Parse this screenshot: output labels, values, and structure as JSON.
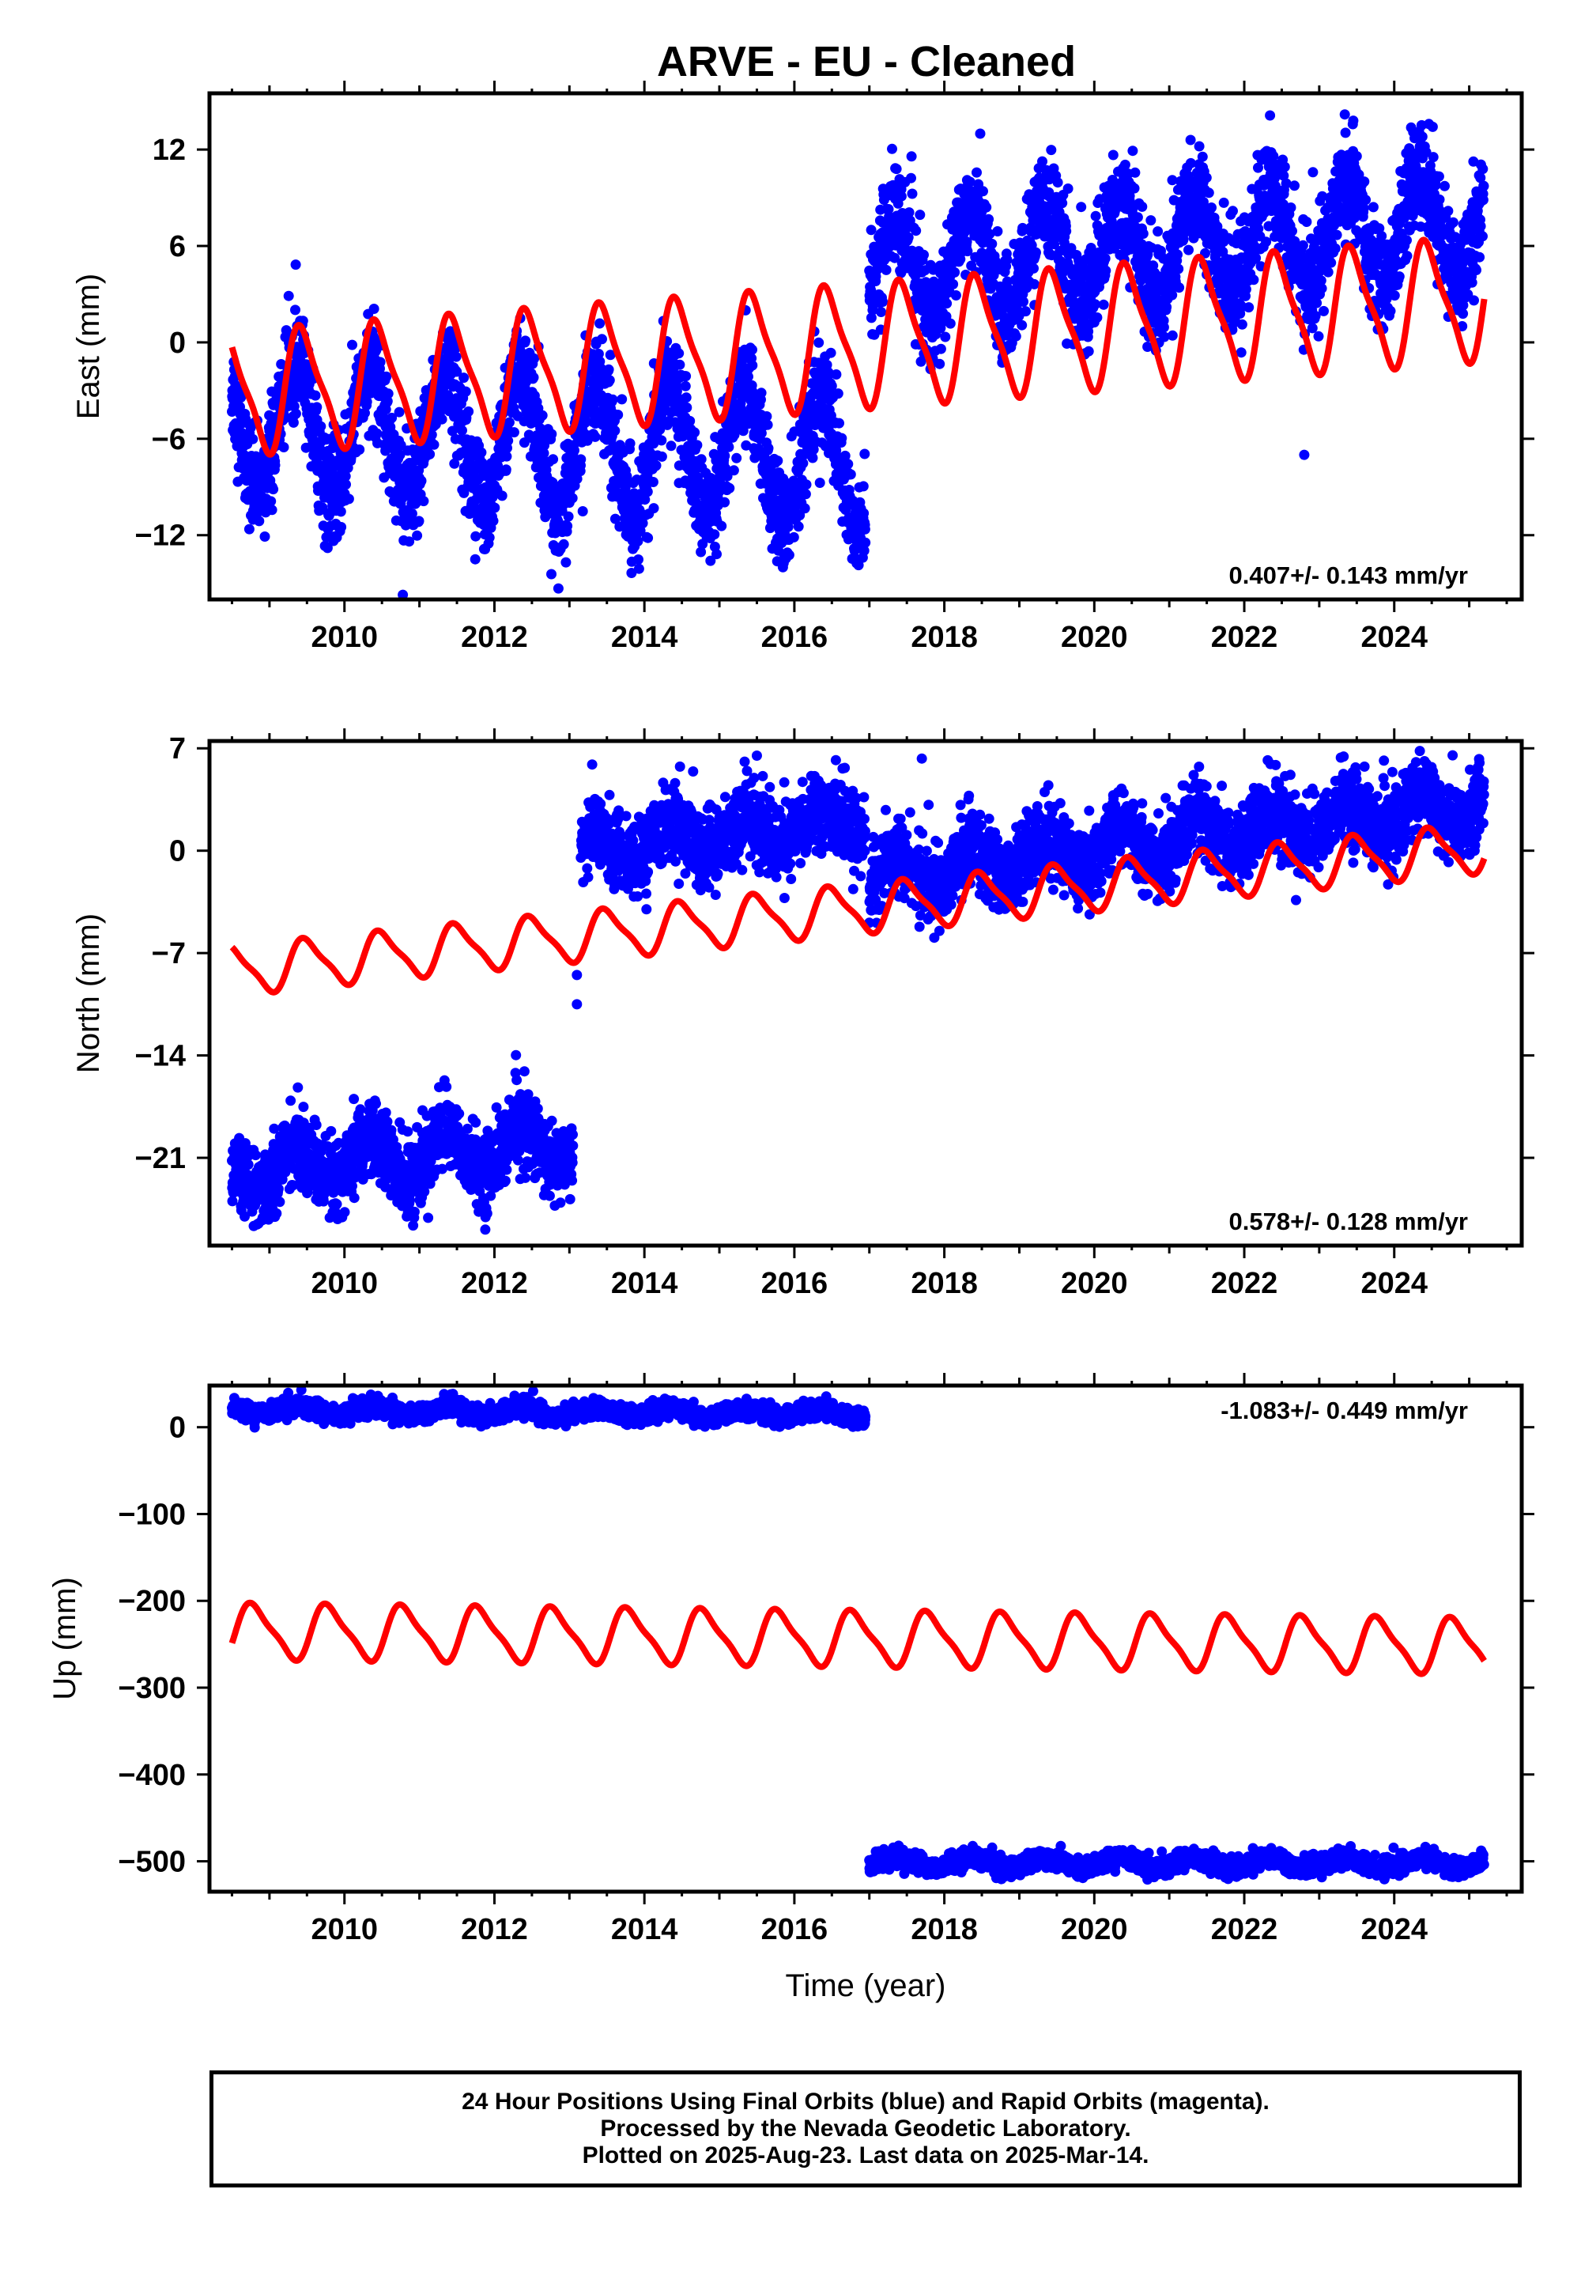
{
  "title": "ARVE  - EU - Cleaned",
  "colors": {
    "observed": "#0000ff",
    "model": "#ff0000",
    "frame": "#000000"
  },
  "footer": {
    "line1": "24 Hour Positions Using Final Orbits (blue) and Rapid Orbits (magenta).",
    "line2": "Processed by the Nevada Geodetic Laboratory.",
    "line3": "Plotted on 2025-Aug-23. Last data on 2025-Mar-14."
  },
  "chart_data": [
    {
      "type": "scatter",
      "panel": "east",
      "ylabel": "East (mm)",
      "xlabel": "",
      "xlim": [
        2008.2,
        2025.7
      ],
      "ylim": [
        -16,
        15.5
      ],
      "xticks": [
        2010,
        2012,
        2014,
        2016,
        2018,
        2020,
        2022,
        2024
      ],
      "yticks": [
        12,
        6,
        0,
        -6,
        -12
      ],
      "ytick_labels": [
        "12",
        "6",
        "0",
        "-6",
        "-12"
      ],
      "rate_label": "0.407+/- 0.143 mm/yr",
      "rate_label_position": "bottom-right",
      "series": [
        {
          "kind": "observed_points",
          "segments": [
            {
              "x_range": [
                2008.5,
                2016.95
              ],
              "trend_start": -5.0,
              "trend_end": -7.5,
              "amplitude": 4.0,
              "noise": 1.6
            },
            {
              "x_range": [
                2017.0,
                2025.2
              ],
              "trend_start": 4.5,
              "trend_end": 7.5,
              "amplitude": 3.2,
              "noise": 1.6
            }
          ],
          "outliers": [
            {
              "x": 2022.8,
              "y": -7.0
            }
          ]
        },
        {
          "kind": "model_line",
          "x_range": [
            2008.5,
            2025.2
          ],
          "offset_start": -3.2,
          "offset_end": 2.7,
          "amplitude": 3.6,
          "phase_peak_frac": 0.45
        }
      ]
    },
    {
      "type": "scatter",
      "panel": "north",
      "ylabel": "North (mm)",
      "xlabel": "",
      "xlim": [
        2008.2,
        2025.7
      ],
      "ylim": [
        -27,
        7.5
      ],
      "xticks": [
        2010,
        2012,
        2014,
        2016,
        2018,
        2020,
        2022,
        2024
      ],
      "yticks": [
        7,
        0,
        -7,
        -14,
        -21
      ],
      "ytick_labels": [
        "7",
        "0",
        "-7",
        "-14",
        "-21"
      ],
      "rate_label": "0.578+/- 0.128 mm/yr",
      "rate_label_position": "bottom-right",
      "series": [
        {
          "kind": "observed_points",
          "segments": [
            {
              "x_range": [
                2008.5,
                2013.05
              ],
              "trend_start": -22.0,
              "trend_end": -20.0,
              "amplitude": 1.5,
              "noise": 1.3
            },
            {
              "x_range": [
                2013.15,
                2016.95
              ],
              "trend_start": 0.0,
              "trend_end": 2.2,
              "amplitude": 1.2,
              "noise": 1.3
            },
            {
              "x_range": [
                2017.0,
                2025.2
              ],
              "trend_start": -1.8,
              "trend_end": 3.2,
              "amplitude": 1.2,
              "noise": 1.3
            }
          ],
          "outliers": [
            {
              "x": 2013.1,
              "y": -8.5
            },
            {
              "x": 2013.1,
              "y": -10.5
            },
            {
              "x": 2015.5,
              "y": 6.5
            },
            {
              "x": 2017.7,
              "y": 6.3
            }
          ]
        },
        {
          "kind": "model_line",
          "x_range": [
            2008.5,
            2025.2
          ],
          "offset_start": -8.2,
          "offset_end": 0.2,
          "amplitude": 1.6,
          "phase_peak_frac": 0.5
        }
      ]
    },
    {
      "type": "scatter",
      "panel": "up",
      "ylabel": "Up (mm)",
      "xlabel": "Time (year)",
      "xlim": [
        2008.2,
        2025.7
      ],
      "ylim": [
        -535,
        48
      ],
      "xticks": [
        2010,
        2012,
        2014,
        2016,
        2018,
        2020,
        2022,
        2024
      ],
      "yticks": [
        0,
        -100,
        -200,
        -300,
        -400,
        -500
      ],
      "ytick_labels": [
        "0",
        "-100",
        "-200",
        "-300",
        "-400",
        "-500"
      ],
      "rate_label": "-1.083+/- 0.449 mm/yr",
      "rate_label_position": "top-right",
      "series": [
        {
          "kind": "observed_points",
          "segments": [
            {
              "x_range": [
                2008.5,
                2016.95
              ],
              "trend_start": 20,
              "trend_end": 15,
              "amplitude": 5,
              "noise": 5
            },
            {
              "x_range": [
                2017.0,
                2025.2
              ],
              "trend_start": -502,
              "trend_end": -502,
              "amplitude": 6,
              "noise": 5
            }
          ],
          "outliers": []
        },
        {
          "kind": "model_line",
          "x_range": [
            2008.5,
            2025.2
          ],
          "offset_start": -235,
          "offset_end": -252,
          "amplitude": 30,
          "phase_peak_frac": 0.8
        }
      ]
    }
  ]
}
